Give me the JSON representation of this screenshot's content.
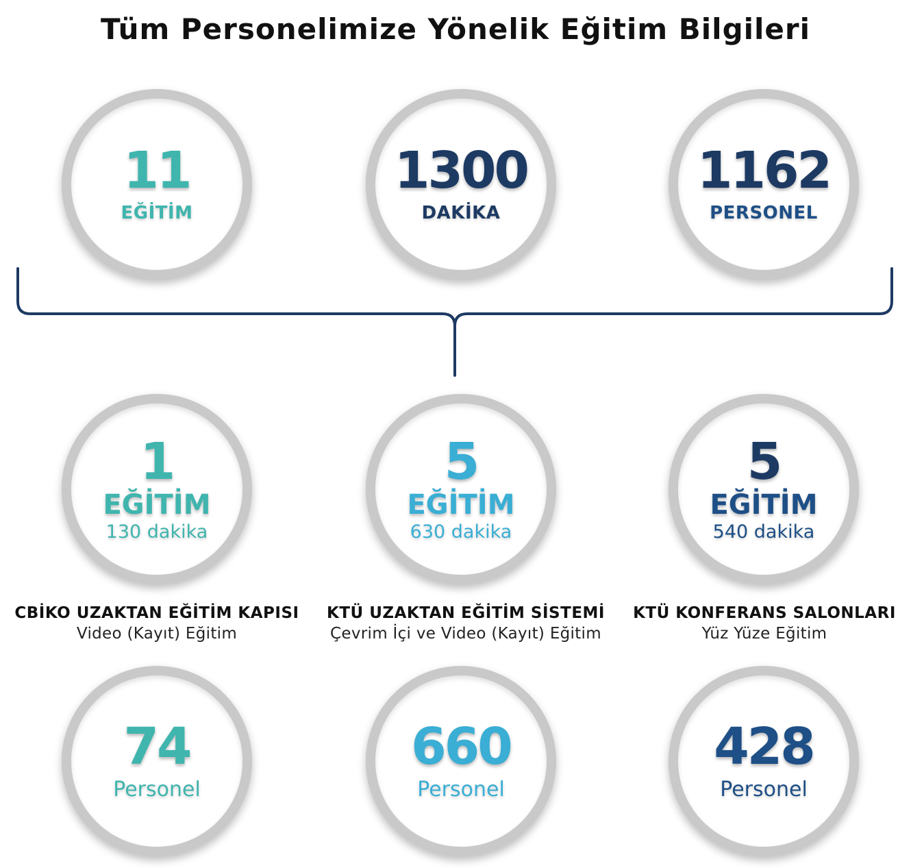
{
  "title": "Tüm Personelimize Yönelik Eğitim Bilgileri",
  "colors": {
    "teal": "#3fb5ae",
    "sky": "#3aaed4",
    "navy": "#1d3a63",
    "blue": "#1e4f86",
    "ring": "#c9c9c9"
  },
  "summary": [
    {
      "number": "11",
      "label": "EĞİTİM"
    },
    {
      "number": "1300",
      "label": "DAKİKA"
    },
    {
      "number": "1162",
      "label": "PERSONEL"
    }
  ],
  "channels": [
    {
      "count": "1",
      "unit": "EĞİTİM",
      "minutes": "130 dakika",
      "name": "CBİKO UZAKTAN EĞİTİM KAPISI",
      "type": "Video (Kayıt) Eğitim",
      "personnel": "74",
      "personnel_label": "Personel"
    },
    {
      "count": "5",
      "unit": "EĞİTİM",
      "minutes": "630 dakika",
      "name": "KTÜ UZAKTAN EĞİTİM SİSTEMİ",
      "type": "Çevrim İçi ve Video (Kayıt) Eğitim",
      "personnel": "660",
      "personnel_label": "Personel"
    },
    {
      "count": "5",
      "unit": "EĞİTİM",
      "minutes": "540 dakika",
      "name": "KTÜ KONFERANS SALONLARI",
      "type": "Yüz Yüze Eğitim",
      "personnel": "428",
      "personnel_label": "Personel"
    }
  ]
}
